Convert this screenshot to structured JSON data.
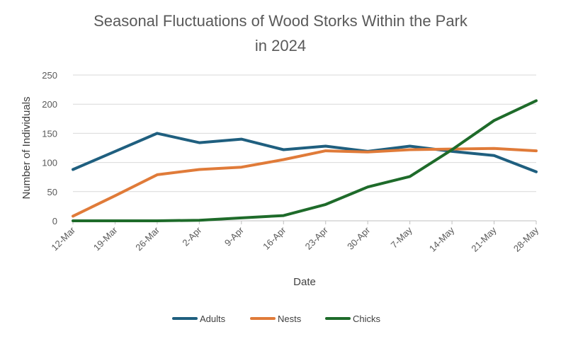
{
  "chart_data": {
    "type": "line",
    "title_lines": [
      "Seasonal Fluctuations of Wood Storks Within the Park",
      "in 2024"
    ],
    "xlabel": "Date",
    "ylabel": "Number of Individuals",
    "categories": [
      "12-Mar",
      "19-Mar",
      "26-Mar",
      "2-Apr",
      "9-Apr",
      "16-Apr",
      "23-Apr",
      "30-Apr",
      "7-May",
      "14-May",
      "21-May",
      "28-May"
    ],
    "ylim": [
      0,
      250
    ],
    "yticks": [
      "0",
      "50",
      "100",
      "150",
      "200",
      "250"
    ],
    "grid": true,
    "legend_position": "bottom",
    "series": [
      {
        "name": "Adults",
        "color": "#1f5f7f",
        "values": [
          88,
          119,
          150,
          134,
          140,
          122,
          128,
          119,
          128,
          119,
          112,
          84
        ]
      },
      {
        "name": "Nests",
        "color": "#e07b39",
        "values": [
          8,
          43,
          79,
          88,
          92,
          105,
          120,
          118,
          122,
          123,
          124,
          120
        ]
      },
      {
        "name": "Chicks",
        "color": "#1e6b2a",
        "values": [
          0,
          0,
          0,
          1,
          5,
          9,
          28,
          58,
          76,
          122,
          172,
          206
        ]
      }
    ]
  }
}
